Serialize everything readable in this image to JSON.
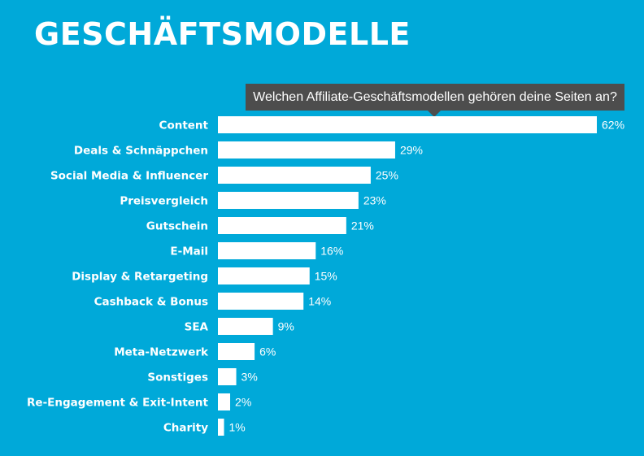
{
  "header": {
    "title": "GESCHÄFTSMODELLE"
  },
  "chart_data": {
    "type": "bar",
    "orientation": "horizontal",
    "title": "Welchen Affiliate-Geschäftsmodellen gehören deine Seiten an?",
    "categories": [
      "Content",
      "Deals & Schnäppchen",
      "Social Media & Influencer",
      "Preisvergleich",
      "Gutschein",
      "E-Mail",
      "Display & Retargeting",
      "Cashback & Bonus",
      "SEA",
      "Meta-Netzwerk",
      "Sonstiges",
      "Re-Engagement & Exit-Intent",
      "Charity"
    ],
    "values": [
      62,
      29,
      25,
      23,
      21,
      16,
      15,
      14,
      9,
      6,
      3,
      2,
      1
    ],
    "value_labels": [
      "62%",
      "29%",
      "25%",
      "23%",
      "21%",
      "16%",
      "15%",
      "14%",
      "9%",
      "6%",
      "3%",
      "2%",
      "1%"
    ],
    "unit": "%",
    "xlim": [
      0,
      62
    ],
    "grid": false,
    "colors": {
      "background": "#00a9d9",
      "bar": "#ffffff",
      "tooltip": "#4d4d4d",
      "text": "#ffffff"
    }
  }
}
